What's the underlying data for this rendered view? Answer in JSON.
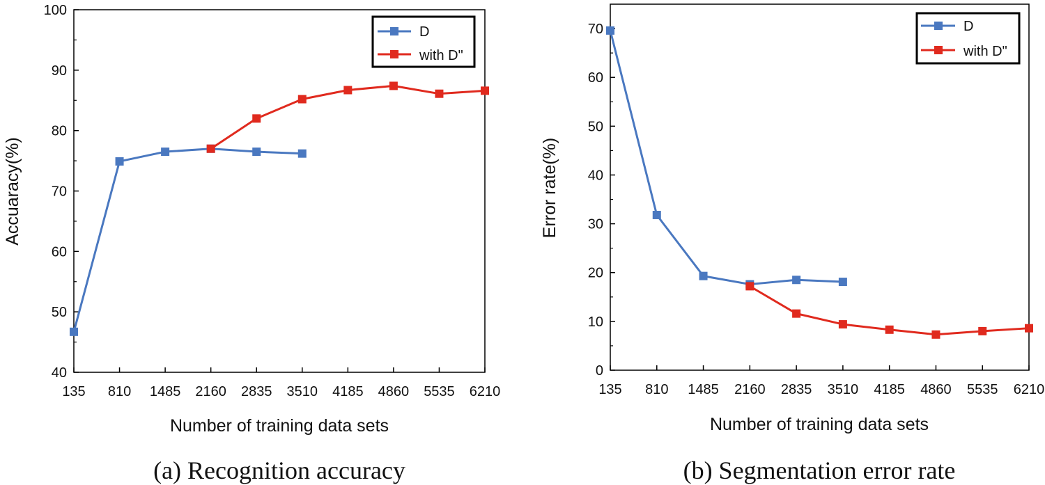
{
  "colors": {
    "series_d": "#4a78c0",
    "series_with_d": "#e02a1e",
    "axis": "#000000"
  },
  "chart_data": [
    {
      "type": "line",
      "caption": "(a) Recognition accuracy",
      "xlabel": "Number of training data sets",
      "ylabel": "Accuaracy(%)",
      "categories": [
        "135",
        "810",
        "1485",
        "2160",
        "2835",
        "3510",
        "4185",
        "4860",
        "5535",
        "6210"
      ],
      "ylim": [
        40,
        100
      ],
      "yticks": [
        40,
        50,
        60,
        70,
        80,
        90,
        100
      ],
      "legend_position": "top-right",
      "series": [
        {
          "name": "D",
          "color_key": "series_d",
          "values": [
            46.7,
            74.9,
            76.5,
            77.0,
            76.5,
            76.2,
            null,
            null,
            null,
            null
          ]
        },
        {
          "name": "with D\"",
          "color_key": "series_with_d",
          "values": [
            null,
            null,
            null,
            77.0,
            82.0,
            85.2,
            86.7,
            87.4,
            86.1,
            86.6
          ]
        }
      ]
    },
    {
      "type": "line",
      "caption": "(b) Segmentation error rate",
      "xlabel": "Number of training data sets",
      "ylabel": "Error rate(%)",
      "categories": [
        "135",
        "810",
        "1485",
        "2160",
        "2835",
        "3510",
        "4185",
        "4860",
        "5535",
        "6210"
      ],
      "ylim": [
        0,
        75
      ],
      "yticks": [
        0,
        10,
        20,
        30,
        40,
        50,
        60,
        70
      ],
      "legend_position": "top-right",
      "series": [
        {
          "name": "D",
          "color_key": "series_d",
          "values": [
            69.6,
            31.8,
            19.3,
            17.6,
            18.5,
            18.1,
            null,
            null,
            null,
            null
          ]
        },
        {
          "name": "with D\"",
          "color_key": "series_with_d",
          "values": [
            null,
            null,
            null,
            17.2,
            11.6,
            9.4,
            8.3,
            7.3,
            8.0,
            8.6
          ]
        }
      ]
    }
  ]
}
